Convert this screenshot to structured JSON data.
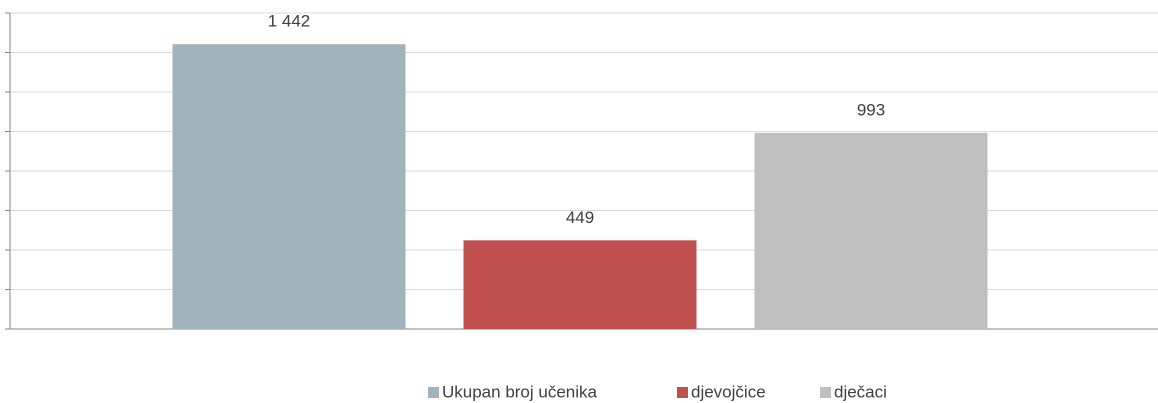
{
  "chart_data": {
    "type": "bar",
    "categories": [
      null
    ],
    "series": [
      {
        "name": "Ukupan broj učenika",
        "color": "#a2b4bb",
        "values": [
          1442
        ],
        "value_labels": [
          "1 442"
        ]
      },
      {
        "name": "djevojčice",
        "color": "#c0504d",
        "values": [
          449
        ],
        "value_labels": [
          "449"
        ]
      },
      {
        "name": "dječaci",
        "color": "#bfbfbf",
        "values": [
          993
        ],
        "value_labels": [
          "993"
        ]
      }
    ],
    "ylim": [
      0,
      1600
    ],
    "yticks": [
      0,
      200,
      400,
      600,
      800,
      1000,
      1200,
      1400,
      1600
    ],
    "grid": true,
    "legend": "bottom"
  }
}
